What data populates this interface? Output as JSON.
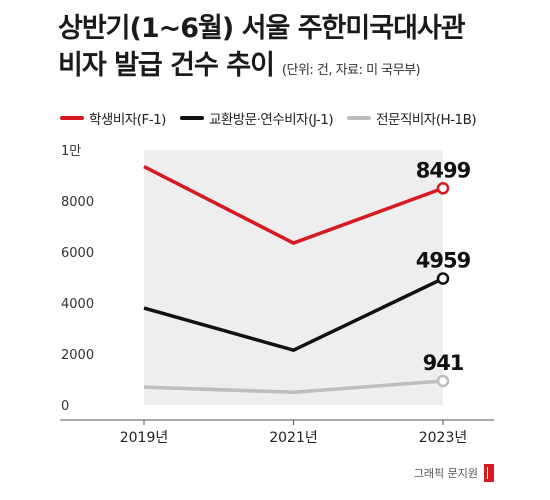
{
  "title": {
    "line1": "상반기(1~6월) 서울 주한미국대사관",
    "line2": "비자 발급 건수 추이",
    "unit_note": "(단위: 건, 자료: 미 국무부)"
  },
  "credit": "그래픽 문지원",
  "colors": {
    "student": "#d71920",
    "exchange": "#111111",
    "professional": "#bdbdbd",
    "area_fill": "#eeeeee",
    "axis": "#555555"
  },
  "chart_data": {
    "type": "line",
    "title": "상반기(1~6월) 서울 주한미국대사관 비자 발급 건수 추이",
    "categories": [
      "2019년",
      "2021년",
      "2023년"
    ],
    "ylim": [
      0,
      10000
    ],
    "y_ticks": [
      {
        "value": 0,
        "label": "0"
      },
      {
        "value": 2000,
        "label": "2000"
      },
      {
        "value": 4000,
        "label": "4000"
      },
      {
        "value": 6000,
        "label": "6000"
      },
      {
        "value": 8000,
        "label": "8000"
      },
      {
        "value": 10000,
        "label": "1만"
      }
    ],
    "grid": false,
    "legend_position": "top",
    "series": [
      {
        "name": "학생비자(F-1)",
        "color": "#d71920",
        "values": [
          9350,
          6350,
          8499
        ],
        "end_label": "8499"
      },
      {
        "name": "교환방문·연수비자(J-1)",
        "color": "#111111",
        "values": [
          3800,
          2150,
          4959
        ],
        "end_label": "4959"
      },
      {
        "name": "전문직비자(H-1B)",
        "color": "#bdbdbd",
        "values": [
          700,
          500,
          941
        ],
        "end_label": "941"
      }
    ]
  }
}
